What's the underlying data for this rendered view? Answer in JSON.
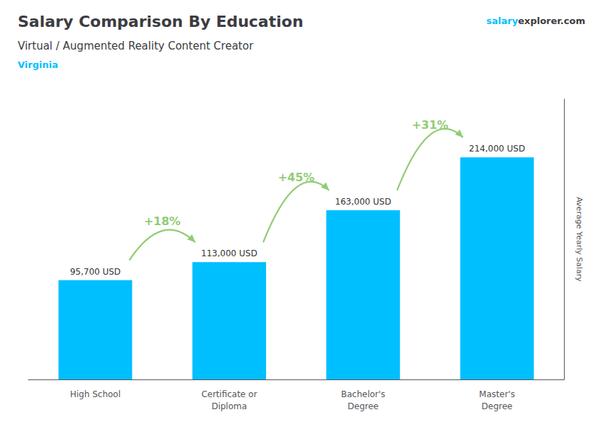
{
  "chart_data": {
    "type": "bar",
    "title": "Salary Comparison By Education",
    "subtitle": "Virtual / Augmented Reality Content Creator",
    "location": "Virginia",
    "watermark": [
      "salary",
      "explorer.com"
    ],
    "ylabel": "Average Yearly Salary",
    "categories": [
      "High School",
      "Certificate or\nDiploma",
      "Bachelor's\nDegree",
      "Master's\nDegree"
    ],
    "values": [
      95700,
      113000,
      163000,
      214000
    ],
    "value_labels": [
      "95,700 USD",
      "113,000 USD",
      "163,000 USD",
      "214,000 USD"
    ],
    "data_labels": true,
    "annotations": [
      "+18%",
      "+45%",
      "+31%"
    ],
    "color": "#00BFFF",
    "ylim": [
      0,
      270000
    ],
    "grid": false,
    "tick_labels": "x"
  }
}
